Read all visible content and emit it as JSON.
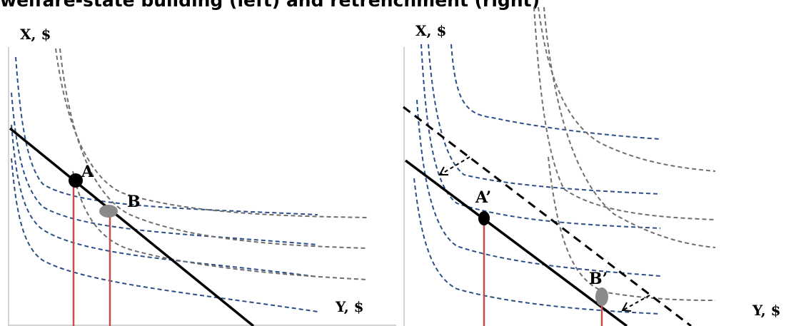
{
  "title": "welfare-state building (left) and retrenchment (right)",
  "colors": {
    "blue_curve": "#2b4f86",
    "gray_curve": "#6f6f6f",
    "budget_line": "#000000",
    "drop_line": "#c0504d",
    "point_A": "#000000",
    "point_B": "#8a8a8a",
    "axis": "#c6c6c6"
  },
  "left_panel": {
    "x_axis_label": "X, $",
    "y_axis_label": "Y, $",
    "point_a_label": "A",
    "point_b_label": "B"
  },
  "right_panel": {
    "x_axis_label": "X, $",
    "y_axis_label": "Y, $",
    "point_a_label": "A’",
    "point_b_label": "B’"
  }
}
